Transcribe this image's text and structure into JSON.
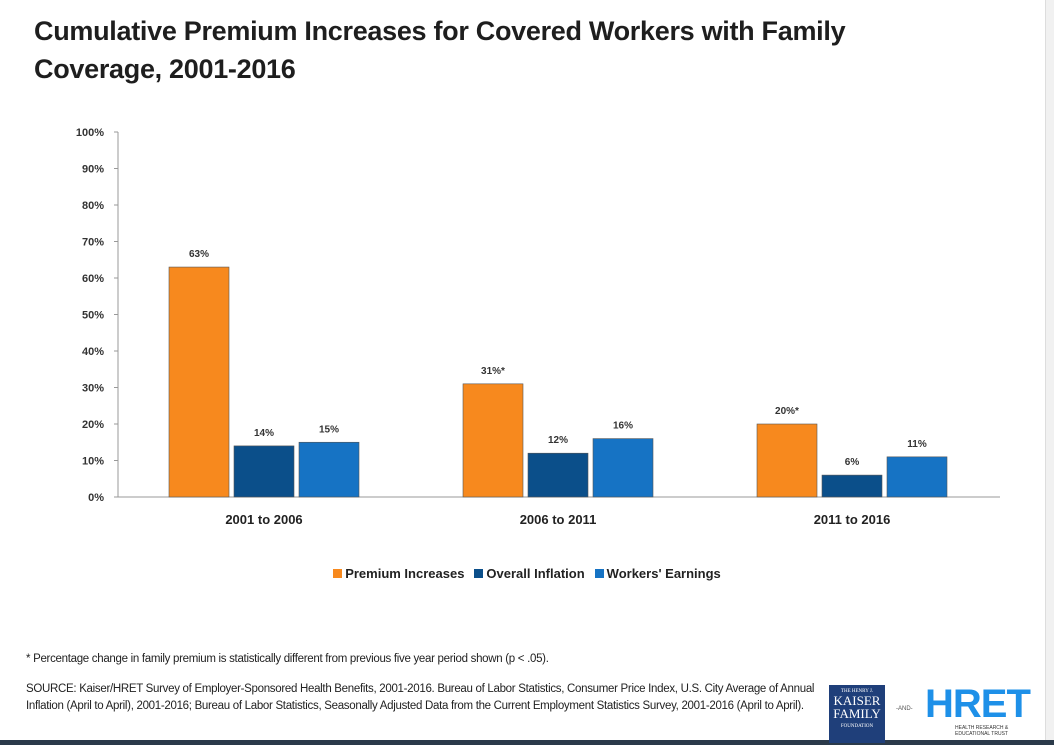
{
  "title": "Cumulative Premium Increases for Covered Workers with Family Coverage, 2001-2016",
  "chart_data": {
    "type": "bar",
    "title": "Cumulative Premium Increases for Covered Workers with Family Coverage, 2001-2016",
    "categories": [
      "2001 to 2006",
      "2006 to 2011",
      "2011 to 2016"
    ],
    "series": [
      {
        "name": "Premium Increases",
        "values": [
          63,
          31,
          20
        ],
        "labels": [
          "63%",
          "31%*",
          "20%*"
        ],
        "color": "#F7891E"
      },
      {
        "name": "Overall Inflation",
        "values": [
          14,
          12,
          6
        ],
        "labels": [
          "14%",
          "12%",
          "6%"
        ],
        "color": "#0B4F8A"
      },
      {
        "name": "Workers' Earnings",
        "values": [
          15,
          16,
          11
        ],
        "labels": [
          "15%",
          "16%",
          "11%"
        ],
        "color": "#1673C4"
      }
    ],
    "ylim": [
      0,
      100
    ],
    "yticks": [
      "0%",
      "10%",
      "20%",
      "30%",
      "40%",
      "50%",
      "60%",
      "70%",
      "80%",
      "90%",
      "100%"
    ],
    "grid": false,
    "legend": "bottom"
  },
  "footnote": "* Percentage change in family premium is statistically different from previous five year period shown (p < .05).",
  "source": "SOURCE:  Kaiser/HRET Survey of Employer-Sponsored Health Benefits, 2001-2016. Bureau of Labor Statistics, Consumer Price Index, U.S. City Average of Annual Inflation (April to April), 2001-2016; Bureau of Labor Statistics, Seasonally Adjusted Data from the Current Employment Statistics Survey, 2001-2016 (April to April).",
  "logos": {
    "kff": {
      "small_top": "THE HENRY J.",
      "line1": "KAISER",
      "line2": "FAMILY",
      "small_bottom": "FOUNDATION"
    },
    "and": "-AND-",
    "hret": "HRET",
    "hret_sub": "HEALTH RESEARCH & EDUCATIONAL TRUST"
  }
}
